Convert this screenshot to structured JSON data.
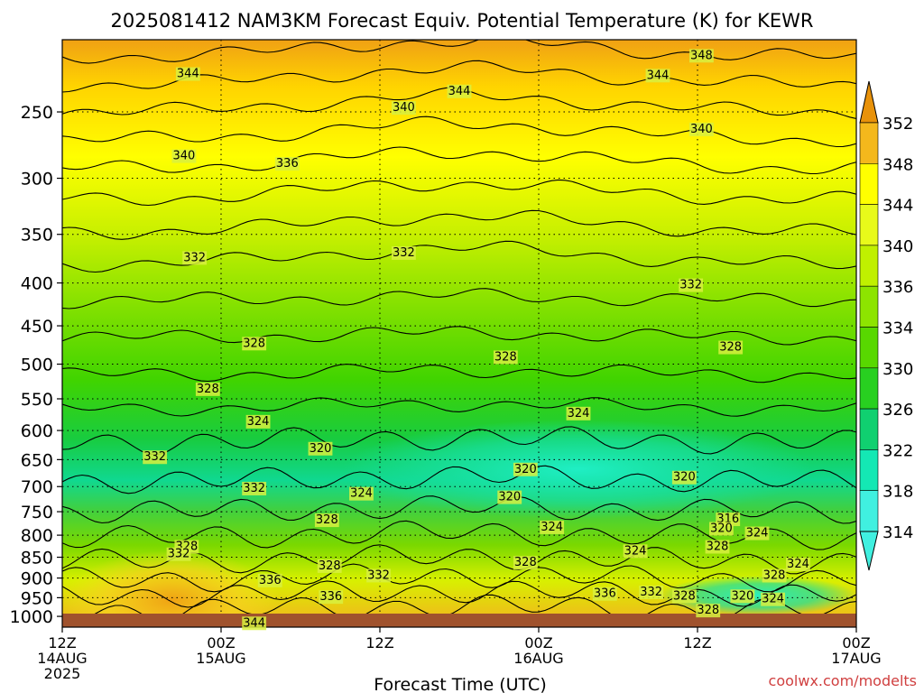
{
  "chart_data": {
    "type": "heatmap",
    "title": "2025081412 NAM3KM Forecast Equiv. Potential Temperature (K) for KEWR",
    "xlabel": "Forecast Time (UTC)",
    "x_ticks": [
      {
        "hours": 0,
        "line1": "12Z",
        "line2": "14AUG",
        "line3": "2025"
      },
      {
        "hours": 12,
        "line1": "00Z",
        "line2": "15AUG",
        "line3": ""
      },
      {
        "hours": 24,
        "line1": "12Z",
        "line2": "",
        "line3": ""
      },
      {
        "hours": 36,
        "line1": "00Z",
        "line2": "16AUG",
        "line3": ""
      },
      {
        "hours": 48,
        "line1": "12Z",
        "line2": "",
        "line3": ""
      },
      {
        "hours": 60,
        "line1": "00Z",
        "line2": "17AUG",
        "line3": ""
      }
    ],
    "xlim": [
      0,
      60
    ],
    "y_axis": "pressure (hPa), inverted log scale",
    "ylim": [
      1030,
      205
    ],
    "y_ticks": [
      250,
      300,
      350,
      400,
      450,
      500,
      550,
      600,
      650,
      700,
      750,
      800,
      850,
      900,
      950,
      1000
    ],
    "grid": true,
    "colorbar": {
      "ticks": [
        352,
        348,
        344,
        340,
        336,
        334,
        330,
        326,
        322,
        318,
        314
      ],
      "colors": [
        "#e8920a",
        "#f4b81c",
        "#ffff00",
        "#e8fa1a",
        "#c0f000",
        "#8de400",
        "#58d800",
        "#28d020",
        "#10d070",
        "#14e8b4",
        "#40f0e0"
      ]
    },
    "contour_labels": [
      {
        "hours": 9.5,
        "p": 225,
        "value": "344"
      },
      {
        "hours": 30,
        "p": 236,
        "value": "344"
      },
      {
        "hours": 45,
        "p": 226,
        "value": "344"
      },
      {
        "hours": 48.3,
        "p": 214,
        "value": "348"
      },
      {
        "hours": 25.8,
        "p": 247,
        "value": "340"
      },
      {
        "hours": 48.3,
        "p": 262,
        "value": "340"
      },
      {
        "hours": 9.2,
        "p": 282,
        "value": "340"
      },
      {
        "hours": 17,
        "p": 288,
        "value": "336"
      },
      {
        "hours": 10,
        "p": 373,
        "value": "332"
      },
      {
        "hours": 25.8,
        "p": 368,
        "value": "332"
      },
      {
        "hours": 47.5,
        "p": 402,
        "value": "332"
      },
      {
        "hours": 14.5,
        "p": 472,
        "value": "328"
      },
      {
        "hours": 33.5,
        "p": 490,
        "value": "328"
      },
      {
        "hours": 50.5,
        "p": 477,
        "value": "328"
      },
      {
        "hours": 11,
        "p": 535,
        "value": "328"
      },
      {
        "hours": 14.8,
        "p": 585,
        "value": "324"
      },
      {
        "hours": 39,
        "p": 572,
        "value": "324"
      },
      {
        "hours": 7,
        "p": 645,
        "value": "332"
      },
      {
        "hours": 19.5,
        "p": 630,
        "value": "320"
      },
      {
        "hours": 35,
        "p": 667,
        "value": "320"
      },
      {
        "hours": 47,
        "p": 682,
        "value": "320"
      },
      {
        "hours": 14.5,
        "p": 703,
        "value": "332"
      },
      {
        "hours": 22.6,
        "p": 713,
        "value": "324"
      },
      {
        "hours": 33.8,
        "p": 720,
        "value": "320"
      },
      {
        "hours": 20,
        "p": 767,
        "value": "328"
      },
      {
        "hours": 37,
        "p": 782,
        "value": "324"
      },
      {
        "hours": 50.3,
        "p": 765,
        "value": "316"
      },
      {
        "hours": 49.8,
        "p": 785,
        "value": "320"
      },
      {
        "hours": 52.5,
        "p": 795,
        "value": "324"
      },
      {
        "hours": 9.4,
        "p": 825,
        "value": "328"
      },
      {
        "hours": 8.8,
        "p": 842,
        "value": "332"
      },
      {
        "hours": 43.3,
        "p": 835,
        "value": "324"
      },
      {
        "hours": 49.5,
        "p": 825,
        "value": "328"
      },
      {
        "hours": 35,
        "p": 862,
        "value": "328"
      },
      {
        "hours": 55.6,
        "p": 866,
        "value": "324"
      },
      {
        "hours": 20.2,
        "p": 870,
        "value": "328"
      },
      {
        "hours": 23.9,
        "p": 893,
        "value": "332"
      },
      {
        "hours": 15.7,
        "p": 905,
        "value": "336"
      },
      {
        "hours": 53.8,
        "p": 893,
        "value": "328"
      },
      {
        "hours": 41,
        "p": 939,
        "value": "336"
      },
      {
        "hours": 44.5,
        "p": 935,
        "value": "332"
      },
      {
        "hours": 47,
        "p": 945,
        "value": "328"
      },
      {
        "hours": 51.4,
        "p": 945,
        "value": "320"
      },
      {
        "hours": 53.7,
        "p": 953,
        "value": "324"
      },
      {
        "hours": 20.3,
        "p": 947,
        "value": "336"
      },
      {
        "hours": 48.8,
        "p": 983,
        "value": "328"
      },
      {
        "hours": 14.5,
        "p": 1018,
        "value": "344"
      }
    ]
  },
  "watermark": "coolwx.com/modelts"
}
